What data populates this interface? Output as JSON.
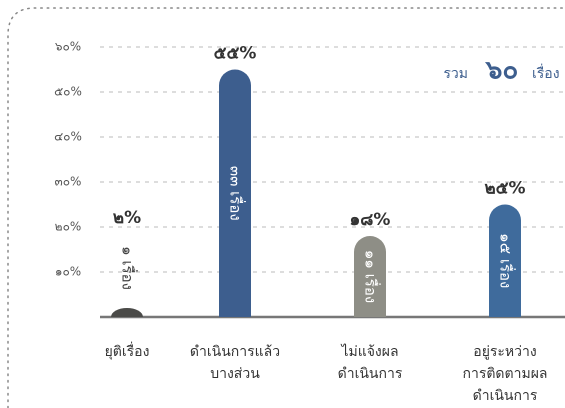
{
  "chart_data": {
    "type": "bar",
    "categories": [
      [
        "ยุติเรื่อง"
      ],
      [
        "ดำเนินการแล้ว",
        "บางส่วน"
      ],
      [
        "ไม่แจ้งผล",
        "ดำเนินการ"
      ],
      [
        "อยู่ระหว่าง",
        "การติดตามผล",
        "ดำเนินการ"
      ]
    ],
    "values": [
      2,
      55,
      18,
      25
    ],
    "value_labels": [
      "๒%",
      "๕๕%",
      "๑๘%",
      "๒๕%"
    ],
    "inner_labels": [
      "๑ เรื่อง",
      "๓๓ เรื่อง",
      "๑๑ เรื่อง",
      "๑๕ เรื่อง"
    ],
    "colors": [
      "#4a4a48",
      "#3d5e8e",
      "#8e8e86",
      "#3f6b9c"
    ],
    "ylim": [
      0,
      60
    ],
    "yticks": [
      {
        "value": 10,
        "label": "๑๐%"
      },
      {
        "value": 20,
        "label": "๒๐%"
      },
      {
        "value": 30,
        "label": "๓๐%"
      },
      {
        "value": 40,
        "label": "๔๐%"
      },
      {
        "value": 50,
        "label": "๕๐%"
      },
      {
        "value": 60,
        "label": "๖๐%"
      }
    ],
    "grid": true,
    "annotation": [
      "รวม",
      "๖๐",
      "เรื่อง"
    ]
  }
}
